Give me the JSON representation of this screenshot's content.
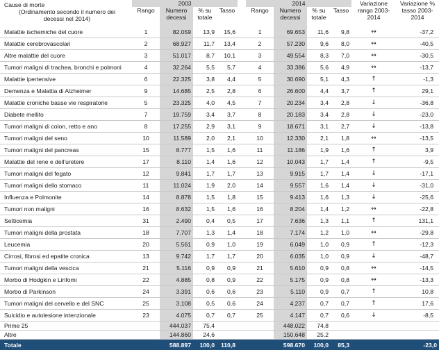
{
  "header": {
    "cause_title": "Cause di morte",
    "cause_note": "(Ordinamento secondo il numero dei decessi nel 2014)",
    "year_a": "2003",
    "year_b": "2014",
    "col_rank": "Rango",
    "col_deaths": "Numero decessi",
    "col_pct": "% su totale",
    "col_rate": "Tasso",
    "col_var_rank": "Variazione rango 2003-2014",
    "col_var_rate": "Variazione % tasso 2003-2014"
  },
  "rows": [
    {
      "cause": "Malattie ischemiche del cuore",
      "r03": "1",
      "d03": "82.059",
      "p03": "13,9",
      "t03": "15,6",
      "r14": "1",
      "d14": "69.653",
      "p14": "11,6",
      "t14": "9,8",
      "var": "↔",
      "vt": "-37,2"
    },
    {
      "cause": "Malattie cerebrovascolari",
      "r03": "2",
      "d03": "68.927",
      "p03": "11,7",
      "t03": "13,4",
      "r14": "2",
      "d14": "57.230",
      "p14": "9,6",
      "t14": "8,0",
      "var": "↔",
      "vt": "-40,5"
    },
    {
      "cause": "Altre malattie del cuore",
      "r03": "3",
      "d03": "51.017",
      "p03": "8,7",
      "t03": "10,1",
      "r14": "3",
      "d14": "49.554",
      "p14": "8,3",
      "t14": "7,0",
      "var": "↔",
      "vt": "-30,5"
    },
    {
      "cause": "Tumori maligni di trachea, bronchi e polmoni",
      "r03": "4",
      "d03": "32.264",
      "p03": "5,5",
      "t03": "5,7",
      "r14": "4",
      "d14": "33.386",
      "p14": "5,6",
      "t14": "4,9",
      "var": "↔",
      "vt": "-13,7"
    },
    {
      "cause": "Malattie ipertensive",
      "r03": "6",
      "d03": "22.325",
      "p03": "3,8",
      "t03": "4,4",
      "r14": "5",
      "d14": "30.690",
      "p14": "5,1",
      "t14": "4,3",
      "var": "↑",
      "vt": "-1,3"
    },
    {
      "cause": "Demenza e Malattia di Alzheimer",
      "r03": "9",
      "d03": "14.685",
      "p03": "2,5",
      "t03": "2,8",
      "r14": "6",
      "d14": "26.600",
      "p14": "4,4",
      "t14": "3,7",
      "var": "↑",
      "vt": "29,1"
    },
    {
      "cause": "Malattie croniche basse vie respiratorie",
      "r03": "5",
      "d03": "23.325",
      "p03": "4,0",
      "t03": "4,5",
      "r14": "7",
      "d14": "20.234",
      "p14": "3,4",
      "t14": "2,8",
      "var": "↓",
      "vt": "-36,8"
    },
    {
      "cause": "Diabete mellito",
      "r03": "7",
      "d03": "19.759",
      "p03": "3,4",
      "t03": "3,7",
      "r14": "8",
      "d14": "20.183",
      "p14": "3,4",
      "t14": "2,8",
      "var": "↓",
      "vt": "-23,0"
    },
    {
      "cause": "Tumori maligni di colon, retto e ano",
      "r03": "8",
      "d03": "17.255",
      "p03": "2,9",
      "t03": "3,1",
      "r14": "9",
      "d14": "18.671",
      "p14": "3,1",
      "t14": "2,7",
      "var": "↓",
      "vt": "-13,8"
    },
    {
      "cause": "Tumori maligni del seno",
      "r03": "10",
      "d03": "11.589",
      "p03": "2,0",
      "t03": "2,1",
      "r14": "10",
      "d14": "12.330",
      "p14": "2,1",
      "t14": "1,8",
      "var": "↔",
      "vt": "-13,5"
    },
    {
      "cause": "Tumori maligni del pancreas",
      "r03": "15",
      "d03": "8.777",
      "p03": "1,5",
      "t03": "1,6",
      "r14": "11",
      "d14": "11.186",
      "p14": "1,9",
      "t14": "1,6",
      "var": "↑",
      "vt": "3,9"
    },
    {
      "cause": "Malattie del rene e dell'uretere",
      "r03": "17",
      "d03": "8.110",
      "p03": "1,4",
      "t03": "1,6",
      "r14": "12",
      "d14": "10.043",
      "p14": "1,7",
      "t14": "1,4",
      "var": "↑",
      "vt": "-9,5"
    },
    {
      "cause": "Tumori maligni del fegato",
      "r03": "12",
      "d03": "9.841",
      "p03": "1,7",
      "t03": "1,7",
      "r14": "13",
      "d14": "9.915",
      "p14": "1,7",
      "t14": "1,4",
      "var": "↓",
      "vt": "-17,1"
    },
    {
      "cause": "Tumori maligni dello stomaco",
      "r03": "11",
      "d03": "11.024",
      "p03": "1,9",
      "t03": "2,0",
      "r14": "14",
      "d14": "9.557",
      "p14": "1,6",
      "t14": "1,4",
      "var": "↓",
      "vt": "-31,0"
    },
    {
      "cause": "Influenza e Polmonite",
      "r03": "14",
      "d03": "8.878",
      "p03": "1,5",
      "t03": "1,8",
      "r14": "15",
      "d14": "9.413",
      "p14": "1,6",
      "t14": "1,3",
      "var": "↓",
      "vt": "-25,6"
    },
    {
      "cause": "Tumori non maligni",
      "r03": "16",
      "d03": "8.632",
      "p03": "1,5",
      "t03": "1,6",
      "r14": "16",
      "d14": "8.204",
      "p14": "1,4",
      "t14": "1,2",
      "var": "↔",
      "vt": "-22,8"
    },
    {
      "cause": "Setticemia",
      "r03": "31",
      "d03": "2.490",
      "p03": "0,4",
      "t03": "0,5",
      "r14": "17",
      "d14": "7.636",
      "p14": "1,3",
      "t14": "1,1",
      "var": "↑",
      "vt": "131,1"
    },
    {
      "cause": "Tumori maligni della prostata",
      "r03": "18",
      "d03": "7.707",
      "p03": "1,3",
      "t03": "1,4",
      "r14": "18",
      "d14": "7.174",
      "p14": "1,2",
      "t14": "1,0",
      "var": "↔",
      "vt": "-29,8"
    },
    {
      "cause": "Leucemia",
      "r03": "20",
      "d03": "5.561",
      "p03": "0,9",
      "t03": "1,0",
      "r14": "19",
      "d14": "6.049",
      "p14": "1,0",
      "t14": "0,9",
      "var": "↑",
      "vt": "-12,3"
    },
    {
      "cause": "Cirrosi, fibrosi ed epatite cronica",
      "r03": "13",
      "d03": "9.742",
      "p03": "1,7",
      "t03": "1,7",
      "r14": "20",
      "d14": "6.035",
      "p14": "1,0",
      "t14": "0,9",
      "var": "↓",
      "vt": "-48,7"
    },
    {
      "cause": "Tumori maligni della vescica",
      "r03": "21",
      "d03": "5.116",
      "p03": "0,9",
      "t03": "0,9",
      "r14": "21",
      "d14": "5.610",
      "p14": "0,9",
      "t14": "0,8",
      "var": "↔",
      "vt": "-14,5"
    },
    {
      "cause": "Morbo di Hodgkin e Linfomi",
      "r03": "22",
      "d03": "4.885",
      "p03": "0,8",
      "t03": "0,9",
      "r14": "22",
      "d14": "5.175",
      "p14": "0,9",
      "t14": "0,8",
      "var": "↔",
      "vt": "-13,3"
    },
    {
      "cause": "Morbo di Parkinson",
      "r03": "24",
      "d03": "3.391",
      "p03": "0,6",
      "t03": "0,6",
      "r14": "23",
      "d14": "5.110",
      "p14": "0,9",
      "t14": "0,7",
      "var": "↑",
      "vt": "10,8"
    },
    {
      "cause": "Tumori maligni del cervello e del SNC",
      "r03": "25",
      "d03": "3.108",
      "p03": "0,5",
      "t03": "0,6",
      "r14": "24",
      "d14": "4.237",
      "p14": "0,7",
      "t14": "0,7",
      "var": "↑",
      "vt": "17,6"
    },
    {
      "cause": "Suicidio e autolesione intenzionale",
      "r03": "23",
      "d03": "4.075",
      "p03": "0,7",
      "t03": "0,7",
      "r14": "25",
      "d14": "4.147",
      "p14": "0,7",
      "t14": "0,6",
      "var": "↓",
      "vt": "-8,5"
    }
  ],
  "prime25": {
    "label": "Prime 25",
    "d03": "444.037",
    "p03": "75,4",
    "d14": "448.022",
    "p14": "74,8"
  },
  "altre": {
    "label": "Altre",
    "d03": "144.860",
    "p03": "24,6",
    "d14": "150.648",
    "p14": "25,2"
  },
  "totale": {
    "label": "Totale",
    "d03": "588.897",
    "p03": "100,0",
    "t03": "110,8",
    "d14": "598.670",
    "p14": "100,0",
    "t14": "85,3",
    "vt": "-23,0"
  }
}
